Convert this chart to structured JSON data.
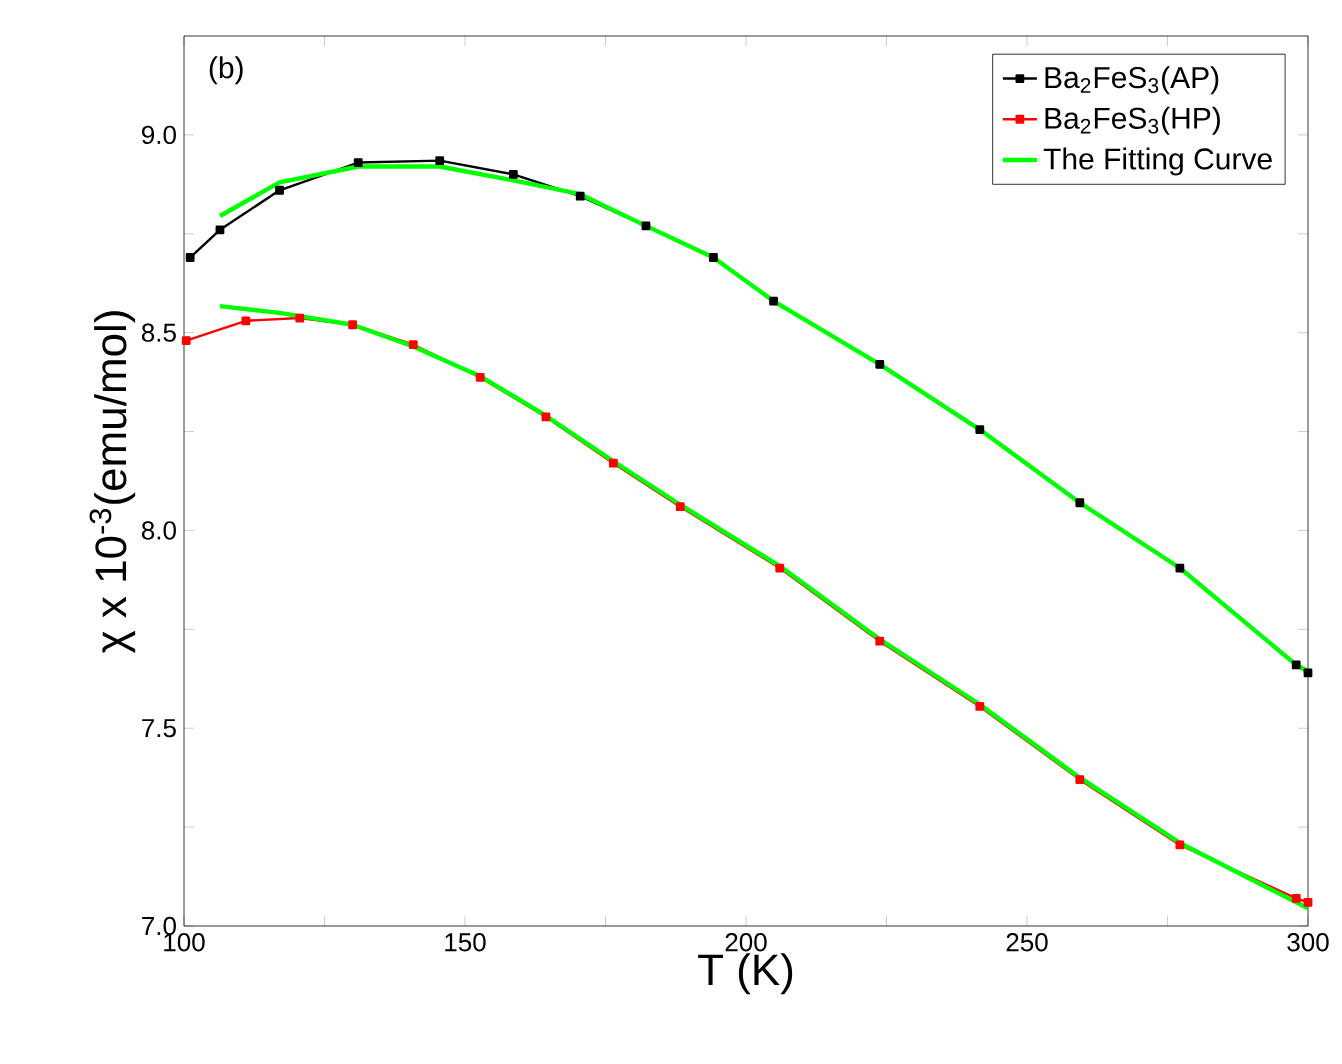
{
  "chart_data": {
    "type": "line",
    "xlabel": "T (K)",
    "ylabel": "χ x 10$^{-3}$(emu/mol)",
    "annotations": [
      "(b)"
    ],
    "xlim": [
      100,
      300
    ],
    "ylim": [
      7.0,
      9.25
    ],
    "xticks": [
      100,
      {
        "value": 125,
        "label": null
      },
      150,
      {
        "value": 175,
        "label": null
      },
      200,
      {
        "value": 225,
        "label": null
      },
      250,
      {
        "value": 275,
        "label": null
      },
      300
    ],
    "yticks": [
      {
        "value": 7,
        "label": "7.0"
      },
      {
        "value": 7.25,
        "label": null
      },
      7.5,
      {
        "value": 7.75,
        "label": null
      },
      {
        "value": 8,
        "label": "8.0"
      },
      {
        "value": 8.25,
        "label": null
      },
      8.5,
      {
        "value": 8.75,
        "label": null
      },
      {
        "value": 9,
        "label": "9.0"
      }
    ],
    "legend": "top right",
    "grid": false,
    "series": [
      {
        "name": "Ba$_{2}$FeS$_{3}$(AP)",
        "color": "#000000",
        "marker": "square",
        "x": [
          101.1,
          106.4,
          117,
          131,
          145.5,
          158.6,
          170.5,
          182.2,
          194.2,
          204.9,
          223.8,
          241.6,
          259.4,
          277.2,
          297.9,
          300
        ],
        "values": [
          8.69,
          8.76,
          8.86,
          8.93,
          8.935,
          8.9,
          8.845,
          8.77,
          8.69,
          8.58,
          8.42,
          8.255,
          8.07,
          7.905,
          7.66,
          7.64
        ]
      },
      {
        "name": "Ba$_{2}$FeS$_{3}$(HP)",
        "color": "#ff0000",
        "marker": "square",
        "x": [
          100.4,
          111,
          120.6,
          130,
          140.8,
          152.7,
          164.4,
          176.4,
          188.3,
          206,
          223.8,
          241.6,
          259.4,
          277.2,
          297.9,
          300
        ],
        "values": [
          8.48,
          8.53,
          8.537,
          8.52,
          8.47,
          8.387,
          8.287,
          8.17,
          8.06,
          7.905,
          7.72,
          7.555,
          7.37,
          7.205,
          7.07,
          7.06
        ]
      },
      {
        "name": "The  Fitting Curve",
        "color": "#00ff00",
        "marker": "none",
        "x": [
          106.4,
          117,
          131,
          145.5,
          158.6,
          170.5,
          182.2,
          194.2,
          204.9,
          223.8,
          241.6,
          259.4,
          277.2,
          297.9,
          300
        ],
        "values": [
          8.795,
          8.88,
          8.92,
          8.92,
          8.885,
          8.85,
          8.77,
          8.69,
          8.58,
          8.42,
          8.255,
          8.07,
          7.905,
          7.66,
          7.645
        ]
      },
      {
        "color": "#00ff00",
        "marker": "none",
        "x": [
          106.4,
          117,
          130,
          140.8,
          152.7,
          164.4,
          176.4,
          188.3,
          206,
          223.8,
          241.6,
          259.4,
          277.2,
          297.9,
          300
        ],
        "values": [
          8.567,
          8.55,
          8.52,
          8.465,
          8.39,
          8.29,
          8.175,
          8.065,
          7.91,
          7.725,
          7.56,
          7.375,
          7.21,
          7.06,
          7.045
        ]
      }
    ]
  }
}
